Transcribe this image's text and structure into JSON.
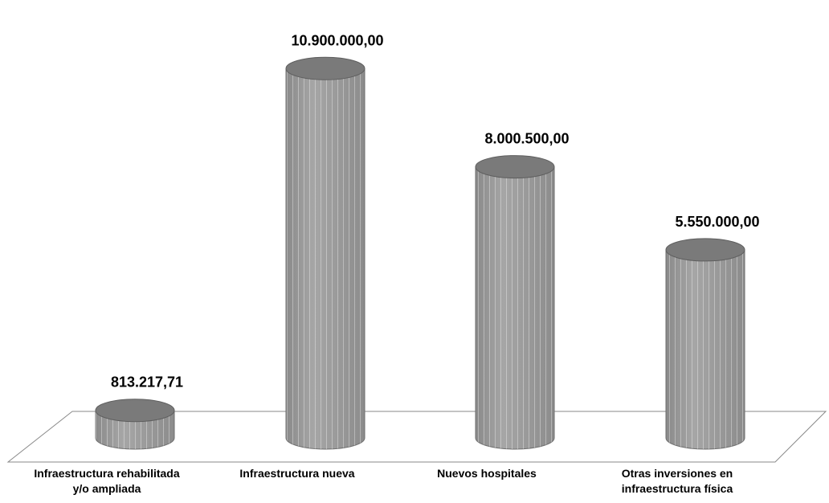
{
  "chart_data": {
    "type": "bar",
    "style": "3d-cylinder",
    "categories": [
      [
        "Infraestructura rehabilitada",
        "y/o ampliada"
      ],
      [
        "Infraestructura nueva"
      ],
      [
        "Nuevos hospitales"
      ],
      [
        "Otras inversiones en",
        "infraestructura física"
      ]
    ],
    "values": [
      813217.71,
      10900000.0,
      8000500.0,
      5550000.0
    ],
    "value_labels": [
      "813.217,71",
      "10.900.000,00",
      "8.000.500,00",
      "5.550.000,00"
    ],
    "ylim": [
      0,
      11500000
    ],
    "grid": false,
    "legend": "none",
    "colors": {
      "bar": "#9a9a9a",
      "bar_top": "#7a7a7a",
      "floor_stroke": "#8a8a8a"
    }
  }
}
